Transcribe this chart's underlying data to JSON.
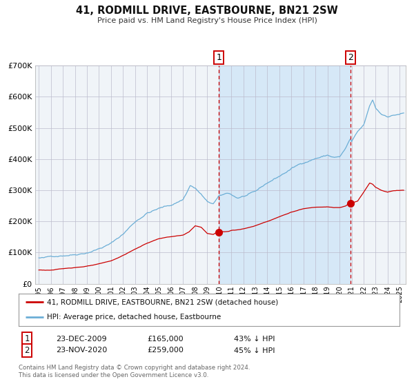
{
  "title": "41, RODMILL DRIVE, EASTBOURNE, BN21 2SW",
  "subtitle": "Price paid vs. HM Land Registry's House Price Index (HPI)",
  "ylim": [
    0,
    700000
  ],
  "yticks": [
    0,
    100000,
    200000,
    300000,
    400000,
    500000,
    600000,
    700000
  ],
  "ytick_labels": [
    "£0",
    "£100K",
    "£200K",
    "£300K",
    "£400K",
    "£500K",
    "£600K",
    "£700K"
  ],
  "xlim_start": 1994.7,
  "xlim_end": 2025.5,
  "hpi_color": "#6baed6",
  "property_color": "#cc0000",
  "background_color": "#ffffff",
  "plot_bg_color": "#f0f4f8",
  "grid_color": "#bbbbcc",
  "shade_color": "#d6e8f7",
  "marker1_date": 2009.97,
  "marker1_price": 165000,
  "marker2_date": 2020.9,
  "marker2_price": 259000,
  "vline1_x": 2009.97,
  "vline2_x": 2020.9,
  "legend_property": "41, RODMILL DRIVE, EASTBOURNE, BN21 2SW (detached house)",
  "legend_hpi": "HPI: Average price, detached house, Eastbourne",
  "annotation1_label": "1",
  "annotation1_date": "23-DEC-2009",
  "annotation1_price": "£165,000",
  "annotation1_pct": "43% ↓ HPI",
  "annotation2_label": "2",
  "annotation2_date": "23-NOV-2020",
  "annotation2_price": "£259,000",
  "annotation2_pct": "45% ↓ HPI",
  "footer1": "Contains HM Land Registry data © Crown copyright and database right 2024.",
  "footer2": "This data is licensed under the Open Government Licence v3.0."
}
